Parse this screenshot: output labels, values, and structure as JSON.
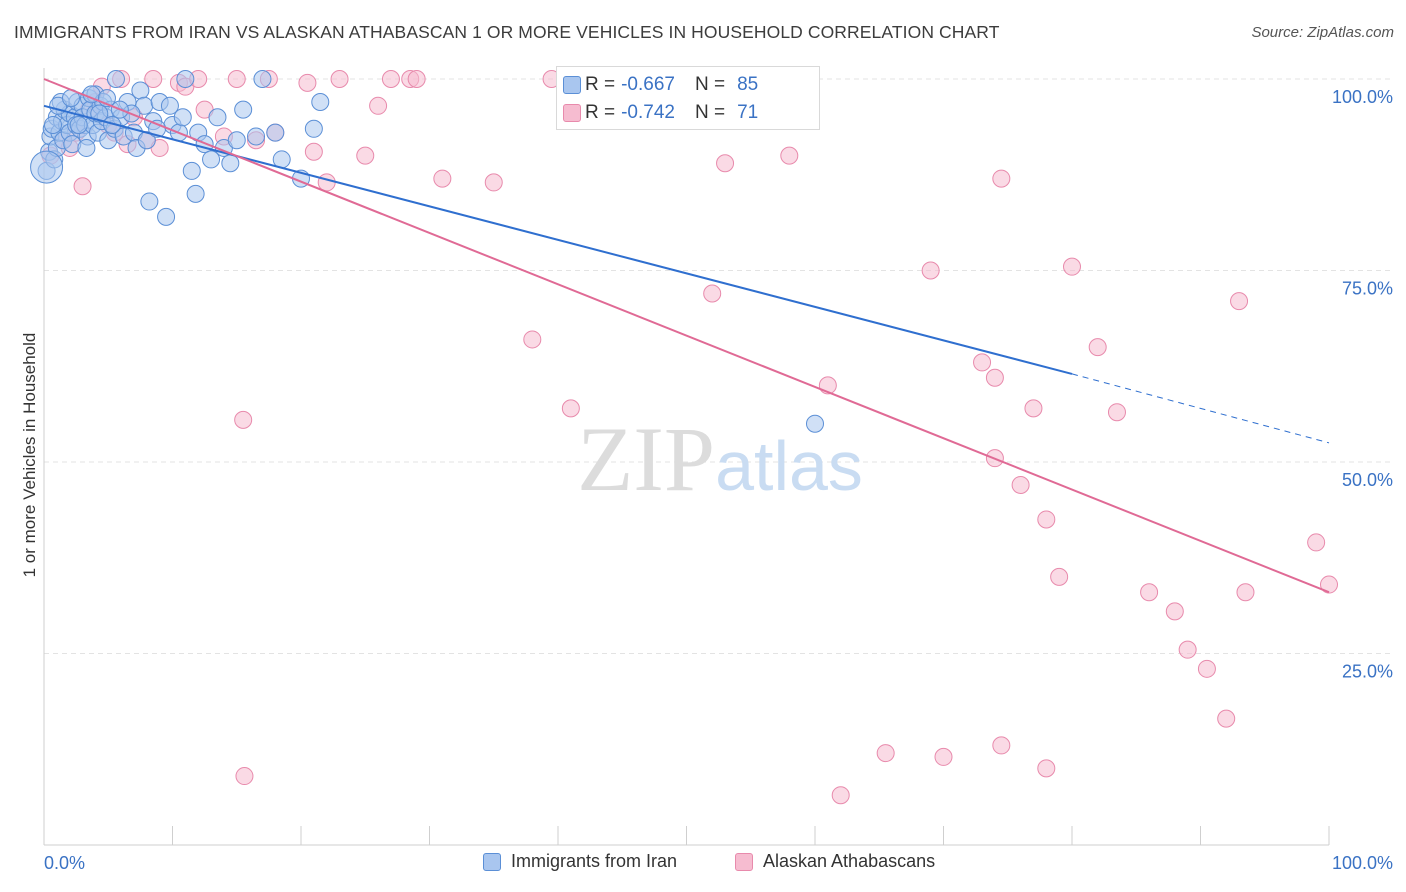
{
  "header": {
    "title": "IMMIGRANTS FROM IRAN VS ALASKAN ATHABASCAN 1 OR MORE VEHICLES IN HOUSEHOLD CORRELATION CHART",
    "source": "Source: ZipAtlas.com"
  },
  "stats": {
    "iran": {
      "r_label": "R =",
      "r_value": "-0.667",
      "n_label": "N =",
      "n_value": "85"
    },
    "athabascan": {
      "r_label": "R =",
      "r_value": "-0.742",
      "n_label": "N =",
      "n_value": "71"
    }
  },
  "legend": {
    "iran": "Immigrants from Iran",
    "athabascan": "Alaskan Athabascans"
  },
  "watermark": "ZIPatlas",
  "chart_data": {
    "type": "scatter",
    "title": "IMMIGRANTS FROM IRAN VS ALASKAN ATHABASCAN 1 OR MORE VEHICLES IN HOUSEHOLD CORRELATION CHART",
    "xlabel": "",
    "ylabel": "1 or more Vehicles in Household",
    "xlim": [
      0,
      100
    ],
    "ylim": [
      0,
      100
    ],
    "x_tick_labels": [
      "0.0%",
      "100.0%"
    ],
    "y_tick_values": [
      25,
      50,
      75,
      100
    ],
    "y_tick_labels": [
      "25.0%",
      "50.0%",
      "75.0%",
      "100.0%"
    ],
    "colors": {
      "iran_fill": "#a9c6ef",
      "iran_stroke": "#5b8fd6",
      "iran_line": "#2f6fcf",
      "ath_fill": "#f6bcd0",
      "ath_stroke": "#e88aac",
      "ath_line": "#e06a95",
      "tick_label": "#3a72c4",
      "grid": "#e3e3e3"
    },
    "series": [
      {
        "name": "Immigrants from Iran",
        "points": [
          [
            0.2,
            88.0
          ],
          [
            0.4,
            90.5
          ],
          [
            0.5,
            92.5
          ],
          [
            0.6,
            93.5
          ],
          [
            0.8,
            89.5
          ],
          [
            1.0,
            95.0
          ],
          [
            1.0,
            91.0
          ],
          [
            1.2,
            93.0
          ],
          [
            1.4,
            94.5
          ],
          [
            1.5,
            92.0
          ],
          [
            1.6,
            96.0
          ],
          [
            1.8,
            94.0
          ],
          [
            2.0,
            93.0
          ],
          [
            2.0,
            95.5
          ],
          [
            2.2,
            91.5
          ],
          [
            2.4,
            95.0
          ],
          [
            2.5,
            94.0
          ],
          [
            2.6,
            97.0
          ],
          [
            2.8,
            93.5
          ],
          [
            3.0,
            96.5
          ],
          [
            3.0,
            95.0
          ],
          [
            3.2,
            94.0
          ],
          [
            3.4,
            92.5
          ],
          [
            3.5,
            97.5
          ],
          [
            3.6,
            96.0
          ],
          [
            3.8,
            94.0
          ],
          [
            4.0,
            98.0
          ],
          [
            4.0,
            95.5
          ],
          [
            4.2,
            93.0
          ],
          [
            4.4,
            96.5
          ],
          [
            4.5,
            94.5
          ],
          [
            4.6,
            97.0
          ],
          [
            4.8,
            95.0
          ],
          [
            5.0,
            92.0
          ],
          [
            5.2,
            96.0
          ],
          [
            5.5,
            93.5
          ],
          [
            5.6,
            100.0
          ],
          [
            6.0,
            95.0
          ],
          [
            6.2,
            92.5
          ],
          [
            6.5,
            97.0
          ],
          [
            7.0,
            93.0
          ],
          [
            7.2,
            91.0
          ],
          [
            7.5,
            98.5
          ],
          [
            7.8,
            96.5
          ],
          [
            8.0,
            92.0
          ],
          [
            8.2,
            84.0
          ],
          [
            8.5,
            94.5
          ],
          [
            9.0,
            97.0
          ],
          [
            9.5,
            82.0
          ],
          [
            9.8,
            96.5
          ],
          [
            10.0,
            94.0
          ],
          [
            10.5,
            93.0
          ],
          [
            11.0,
            100.0
          ],
          [
            11.5,
            88.0
          ],
          [
            11.8,
            85.0
          ],
          [
            12.0,
            93.0
          ],
          [
            12.5,
            91.5
          ],
          [
            13.0,
            89.5
          ],
          [
            13.5,
            95.0
          ],
          [
            14.0,
            91.0
          ],
          [
            14.5,
            89.0
          ],
          [
            15.0,
            92.0
          ],
          [
            15.5,
            96.0
          ],
          [
            16.5,
            92.5
          ],
          [
            17.0,
            100.0
          ],
          [
            18.0,
            93.0
          ],
          [
            18.5,
            89.5
          ],
          [
            20.0,
            87.0
          ],
          [
            21.0,
            93.5
          ],
          [
            21.5,
            97.0
          ],
          [
            60.0,
            55.0
          ],
          [
            1.3,
            97.0
          ],
          [
            2.7,
            94.0
          ],
          [
            3.3,
            91.0
          ],
          [
            4.3,
            95.5
          ],
          [
            5.3,
            94.0
          ],
          [
            6.8,
            95.5
          ],
          [
            1.1,
            96.5
          ],
          [
            0.7,
            94.0
          ],
          [
            2.1,
            97.5
          ],
          [
            3.7,
            98.0
          ],
          [
            4.9,
            97.5
          ],
          [
            5.9,
            96.0
          ],
          [
            8.8,
            93.5
          ],
          [
            10.8,
            95.0
          ]
        ]
      },
      {
        "name": "Alaskan Athabascans",
        "points": [
          [
            0.5,
            90.0
          ],
          [
            1.5,
            92.0
          ],
          [
            2.0,
            91.0
          ],
          [
            2.5,
            93.0
          ],
          [
            3.0,
            86.0
          ],
          [
            3.5,
            96.0
          ],
          [
            4.0,
            97.0
          ],
          [
            4.5,
            99.0
          ],
          [
            5.0,
            94.0
          ],
          [
            5.5,
            93.0
          ],
          [
            6.0,
            100.0
          ],
          [
            6.5,
            91.5
          ],
          [
            7.0,
            95.0
          ],
          [
            8.0,
            92.0
          ],
          [
            9.0,
            91.0
          ],
          [
            10.5,
            99.5
          ],
          [
            11.0,
            99.0
          ],
          [
            12.0,
            100.0
          ],
          [
            12.5,
            96.0
          ],
          [
            14.0,
            92.5
          ],
          [
            15.0,
            100.0
          ],
          [
            16.5,
            92.0
          ],
          [
            17.5,
            100.0
          ],
          [
            18.0,
            93.0
          ],
          [
            20.5,
            99.5
          ],
          [
            21.0,
            90.5
          ],
          [
            22.0,
            86.5
          ],
          [
            23.0,
            100.0
          ],
          [
            25.0,
            90.0
          ],
          [
            26.0,
            96.5
          ],
          [
            27.0,
            100.0
          ],
          [
            28.5,
            100.0
          ],
          [
            29.0,
            100.0
          ],
          [
            31.0,
            87.0
          ],
          [
            35.0,
            86.5
          ],
          [
            38.0,
            66.0
          ],
          [
            39.5,
            100.0
          ],
          [
            41.0,
            57.0
          ],
          [
            52.0,
            72.0
          ],
          [
            53.0,
            89.0
          ],
          [
            58.0,
            90.0
          ],
          [
            61.0,
            60.0
          ],
          [
            69.0,
            75.0
          ],
          [
            73.0,
            63.0
          ],
          [
            74.0,
            61.0
          ],
          [
            74.5,
            87.0
          ],
          [
            74.0,
            50.5
          ],
          [
            76.0,
            47.0
          ],
          [
            77.0,
            57.0
          ],
          [
            78.0,
            42.5
          ],
          [
            79.0,
            35.0
          ],
          [
            80.0,
            75.5
          ],
          [
            82.0,
            65.0
          ],
          [
            83.5,
            56.5
          ],
          [
            86.0,
            33.0
          ],
          [
            88.0,
            30.5
          ],
          [
            89.0,
            25.5
          ],
          [
            90.5,
            23.0
          ],
          [
            92.0,
            16.5
          ],
          [
            93.0,
            71.0
          ],
          [
            93.5,
            33.0
          ],
          [
            99.0,
            39.5
          ],
          [
            100.0,
            34.0
          ],
          [
            15.5,
            55.5
          ],
          [
            15.6,
            9.0
          ],
          [
            62.0,
            6.5
          ],
          [
            65.5,
            12.0
          ],
          [
            70.0,
            11.5
          ],
          [
            74.5,
            13.0
          ],
          [
            78.0,
            10.0
          ],
          [
            8.5,
            100.0
          ]
        ]
      }
    ],
    "trend_lines": [
      {
        "series": "Immigrants from Iran",
        "from": [
          0,
          96.5
        ],
        "to": [
          80,
          61.5
        ],
        "dashed_to": [
          100,
          52.5
        ]
      },
      {
        "series": "Alaskan Athabascans",
        "from": [
          0,
          100.0
        ],
        "to": [
          100,
          33.0
        ]
      }
    ]
  }
}
